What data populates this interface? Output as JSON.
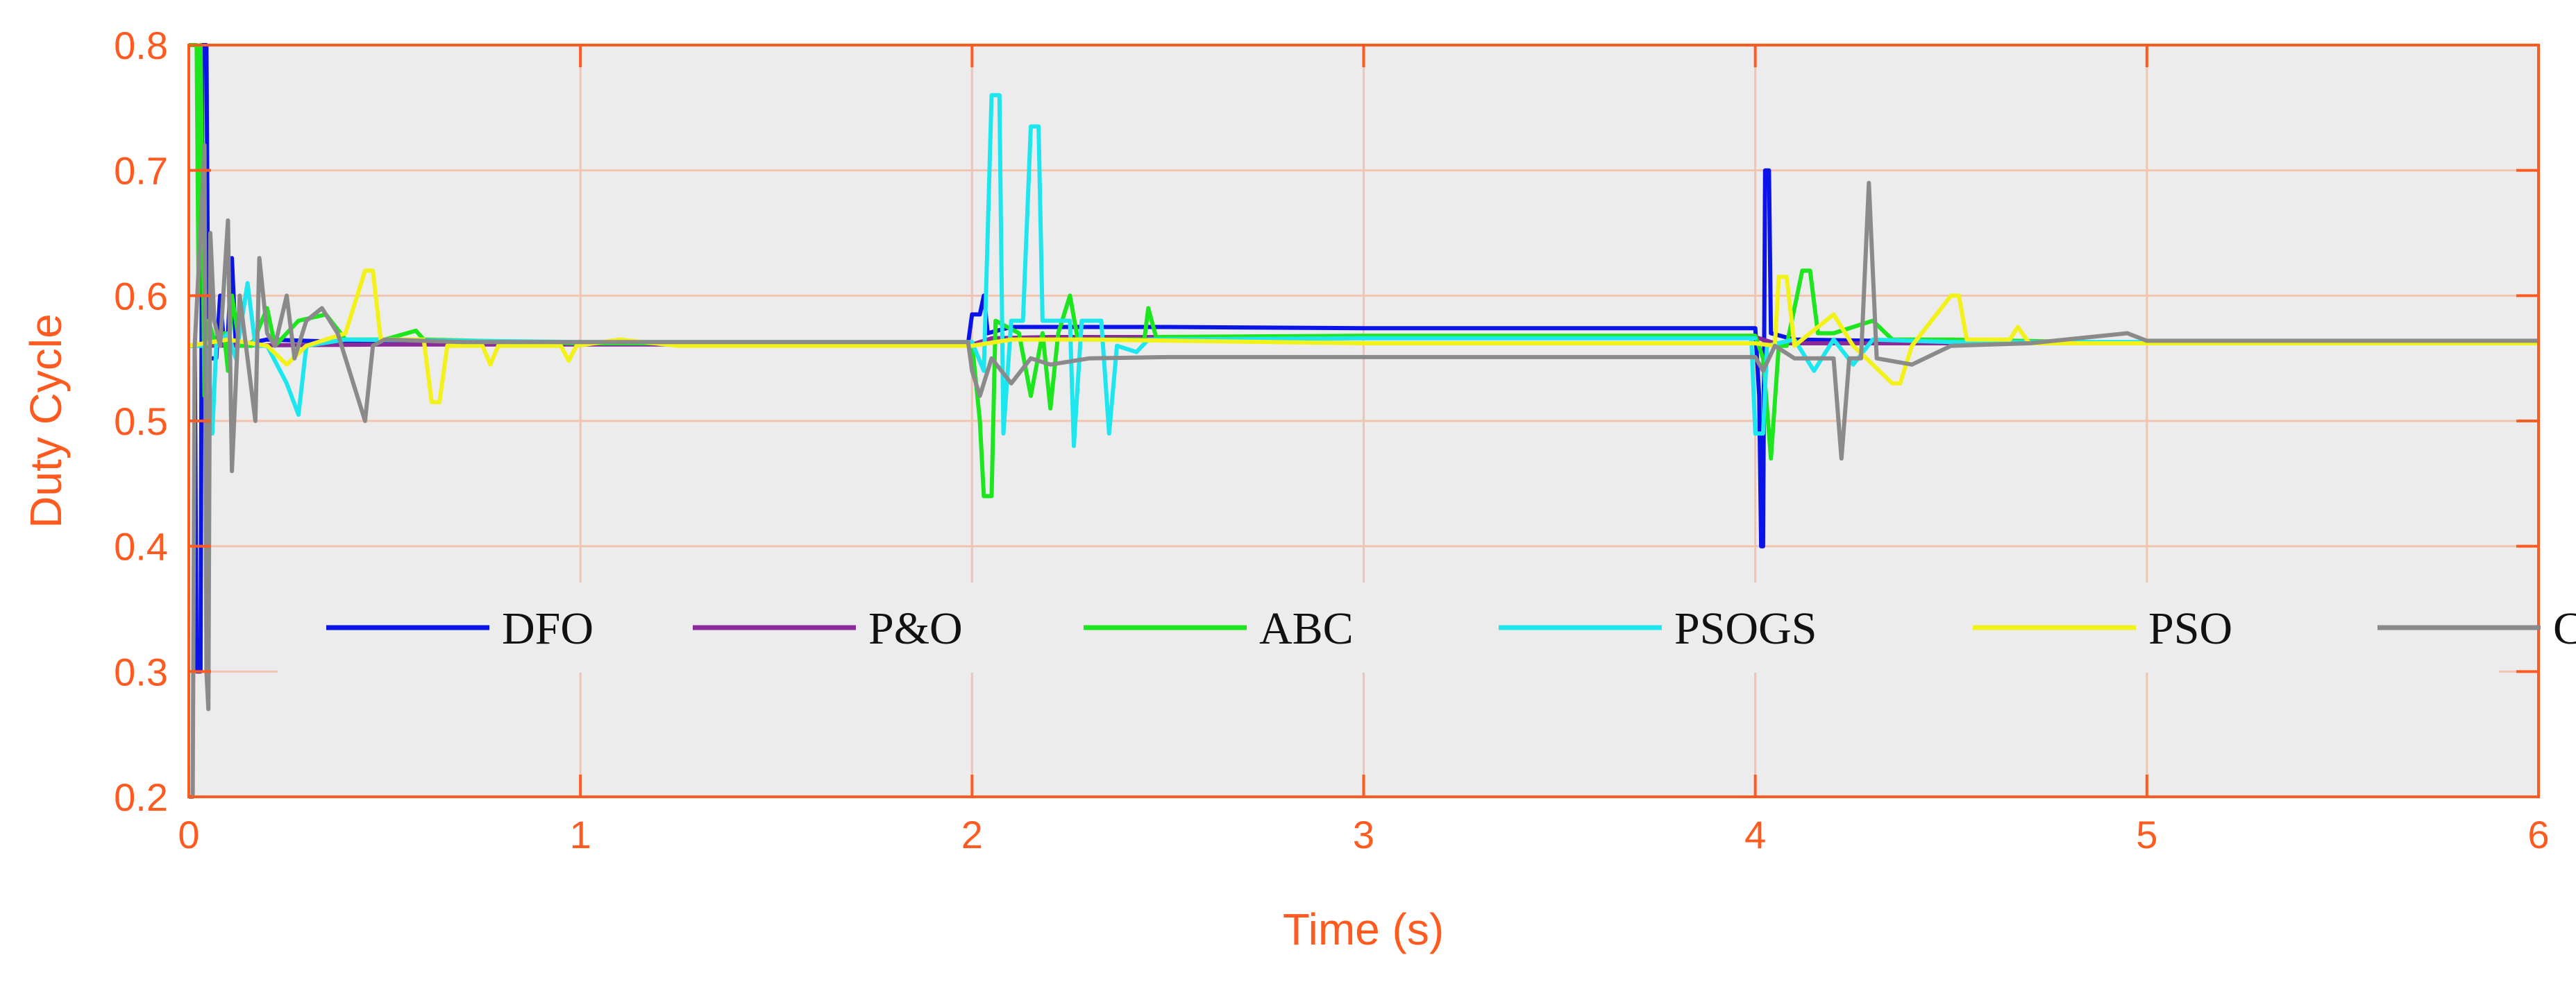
{
  "chart_data": {
    "type": "line",
    "title": "",
    "xlabel": "Time (s)",
    "ylabel": "Duty Cycle",
    "xlim": [
      0,
      6
    ],
    "ylim": [
      0.2,
      0.8
    ],
    "xticks": [
      0,
      1,
      2,
      3,
      4,
      5,
      6
    ],
    "yticks": [
      0.2,
      0.3,
      0.4,
      0.5,
      0.6,
      0.7,
      0.8
    ],
    "xtick_labels": [
      "0",
      "1",
      "2",
      "3",
      "4",
      "5",
      "6"
    ],
    "ytick_labels": [
      "0.2",
      "0.3",
      "0.4",
      "0.5",
      "0.6",
      "0.7",
      "0.8"
    ],
    "grid": true,
    "legend_position": "lower-center",
    "colors": {
      "axis": "#ff5a1f",
      "plot_background": "#ececec",
      "grid": "#f2c4b0"
    },
    "series": [
      {
        "name": "DFO",
        "color": "#0a14e6",
        "points": [
          [
            0,
            0.56
          ],
          [
            0.015,
            0.56
          ],
          [
            0.02,
            0.3
          ],
          [
            0.03,
            0.3
          ],
          [
            0.035,
            0.8
          ],
          [
            0.045,
            0.8
          ],
          [
            0.05,
            0.55
          ],
          [
            0.07,
            0.55
          ],
          [
            0.08,
            0.6
          ],
          [
            0.09,
            0.56
          ],
          [
            0.1,
            0.57
          ],
          [
            0.11,
            0.63
          ],
          [
            0.12,
            0.56
          ],
          [
            0.2,
            0.565
          ],
          [
            0.4,
            0.563
          ],
          [
            0.6,
            0.562
          ],
          [
            1.0,
            0.562
          ],
          [
            1.5,
            0.562
          ],
          [
            1.99,
            0.562
          ],
          [
            2.0,
            0.585
          ],
          [
            2.02,
            0.585
          ],
          [
            2.03,
            0.6
          ],
          [
            2.04,
            0.57
          ],
          [
            2.1,
            0.575
          ],
          [
            2.5,
            0.575
          ],
          [
            3.0,
            0.574
          ],
          [
            3.5,
            0.574
          ],
          [
            4.0,
            0.574
          ],
          [
            4.01,
            0.52
          ],
          [
            4.015,
            0.4
          ],
          [
            4.02,
            0.4
          ],
          [
            4.025,
            0.7
          ],
          [
            4.035,
            0.7
          ],
          [
            4.04,
            0.57
          ],
          [
            4.1,
            0.565
          ],
          [
            4.5,
            0.563
          ],
          [
            5.0,
            0.562
          ],
          [
            6.0,
            0.562
          ]
        ]
      },
      {
        "name": "P&O",
        "color": "#8a2a9a",
        "points": [
          [
            0,
            0.56
          ],
          [
            0.5,
            0.561
          ],
          [
            1.0,
            0.561
          ],
          [
            2.0,
            0.561
          ],
          [
            2.05,
            0.566
          ],
          [
            2.2,
            0.567
          ],
          [
            3.0,
            0.567
          ],
          [
            4.0,
            0.567
          ],
          [
            4.05,
            0.562
          ],
          [
            4.5,
            0.562
          ],
          [
            5.0,
            0.562
          ],
          [
            6.0,
            0.562
          ]
        ]
      },
      {
        "name": "ABC",
        "color": "#1ee61e",
        "points": [
          [
            0,
            0.8
          ],
          [
            0.02,
            0.8
          ],
          [
            0.025,
            0.6
          ],
          [
            0.03,
            0.8
          ],
          [
            0.04,
            0.52
          ],
          [
            0.05,
            0.58
          ],
          [
            0.07,
            0.56
          ],
          [
            0.09,
            0.57
          ],
          [
            0.1,
            0.54
          ],
          [
            0.11,
            0.6
          ],
          [
            0.13,
            0.56
          ],
          [
            0.16,
            0.56
          ],
          [
            0.2,
            0.59
          ],
          [
            0.22,
            0.56
          ],
          [
            0.28,
            0.58
          ],
          [
            0.35,
            0.585
          ],
          [
            0.4,
            0.565
          ],
          [
            0.5,
            0.565
          ],
          [
            0.58,
            0.572
          ],
          [
            0.6,
            0.565
          ],
          [
            1.0,
            0.562
          ],
          [
            1.5,
            0.562
          ],
          [
            2.0,
            0.562
          ],
          [
            2.02,
            0.5
          ],
          [
            2.03,
            0.44
          ],
          [
            2.05,
            0.44
          ],
          [
            2.06,
            0.58
          ],
          [
            2.12,
            0.57
          ],
          [
            2.15,
            0.52
          ],
          [
            2.18,
            0.57
          ],
          [
            2.2,
            0.51
          ],
          [
            2.22,
            0.57
          ],
          [
            2.25,
            0.6
          ],
          [
            2.27,
            0.565
          ],
          [
            2.44,
            0.565
          ],
          [
            2.45,
            0.59
          ],
          [
            2.47,
            0.567
          ],
          [
            3.0,
            0.568
          ],
          [
            4.0,
            0.568
          ],
          [
            4.02,
            0.55
          ],
          [
            4.04,
            0.47
          ],
          [
            4.06,
            0.56
          ],
          [
            4.08,
            0.56
          ],
          [
            4.1,
            0.59
          ],
          [
            4.12,
            0.62
          ],
          [
            4.14,
            0.62
          ],
          [
            4.16,
            0.57
          ],
          [
            4.2,
            0.57
          ],
          [
            4.3,
            0.58
          ],
          [
            4.35,
            0.565
          ],
          [
            4.5,
            0.565
          ],
          [
            5.0,
            0.562
          ],
          [
            6.0,
            0.562
          ]
        ]
      },
      {
        "name": "PSOGS",
        "color": "#1ee6ee",
        "points": [
          [
            0,
            0.56
          ],
          [
            0.04,
            0.56
          ],
          [
            0.05,
            0.55
          ],
          [
            0.06,
            0.49
          ],
          [
            0.07,
            0.56
          ],
          [
            0.1,
            0.57
          ],
          [
            0.12,
            0.55
          ],
          [
            0.15,
            0.61
          ],
          [
            0.17,
            0.56
          ],
          [
            0.2,
            0.56
          ],
          [
            0.25,
            0.53
          ],
          [
            0.28,
            0.505
          ],
          [
            0.3,
            0.56
          ],
          [
            0.4,
            0.565
          ],
          [
            1.0,
            0.563
          ],
          [
            2.0,
            0.563
          ],
          [
            2.03,
            0.54
          ],
          [
            2.05,
            0.76
          ],
          [
            2.07,
            0.76
          ],
          [
            2.08,
            0.49
          ],
          [
            2.1,
            0.58
          ],
          [
            2.13,
            0.58
          ],
          [
            2.15,
            0.735
          ],
          [
            2.17,
            0.735
          ],
          [
            2.18,
            0.58
          ],
          [
            2.25,
            0.58
          ],
          [
            2.26,
            0.48
          ],
          [
            2.28,
            0.58
          ],
          [
            2.33,
            0.58
          ],
          [
            2.35,
            0.49
          ],
          [
            2.37,
            0.56
          ],
          [
            2.42,
            0.555
          ],
          [
            2.45,
            0.565
          ],
          [
            3.0,
            0.566
          ],
          [
            4.0,
            0.566
          ],
          [
            3.99,
            0.566
          ],
          [
            4.0,
            0.49
          ],
          [
            4.02,
            0.49
          ],
          [
            4.03,
            0.56
          ],
          [
            4.1,
            0.565
          ],
          [
            4.15,
            0.54
          ],
          [
            4.2,
            0.565
          ],
          [
            4.25,
            0.545
          ],
          [
            4.3,
            0.565
          ],
          [
            4.5,
            0.563
          ],
          [
            5.0,
            0.563
          ],
          [
            6.0,
            0.563
          ]
        ]
      },
      {
        "name": "PSO",
        "color": "#f2f21a",
        "points": [
          [
            0,
            0.56
          ],
          [
            0.1,
            0.565
          ],
          [
            0.2,
            0.56
          ],
          [
            0.25,
            0.545
          ],
          [
            0.3,
            0.56
          ],
          [
            0.4,
            0.57
          ],
          [
            0.45,
            0.62
          ],
          [
            0.47,
            0.62
          ],
          [
            0.49,
            0.565
          ],
          [
            0.6,
            0.565
          ],
          [
            0.62,
            0.515
          ],
          [
            0.64,
            0.515
          ],
          [
            0.66,
            0.56
          ],
          [
            0.75,
            0.56
          ],
          [
            0.77,
            0.545
          ],
          [
            0.79,
            0.56
          ],
          [
            0.95,
            0.56
          ],
          [
            0.97,
            0.548
          ],
          [
            0.99,
            0.56
          ],
          [
            1.1,
            0.565
          ],
          [
            1.25,
            0.56
          ],
          [
            2.0,
            0.56
          ],
          [
            2.1,
            0.565
          ],
          [
            2.3,
            0.565
          ],
          [
            3.0,
            0.562
          ],
          [
            4.0,
            0.562
          ],
          [
            4.05,
            0.56
          ],
          [
            4.06,
            0.615
          ],
          [
            4.08,
            0.615
          ],
          [
            4.1,
            0.56
          ],
          [
            4.2,
            0.585
          ],
          [
            4.25,
            0.56
          ],
          [
            4.35,
            0.53
          ],
          [
            4.37,
            0.53
          ],
          [
            4.4,
            0.56
          ],
          [
            4.5,
            0.6
          ],
          [
            4.52,
            0.6
          ],
          [
            4.54,
            0.565
          ],
          [
            4.65,
            0.565
          ],
          [
            4.67,
            0.575
          ],
          [
            4.7,
            0.562
          ],
          [
            5.0,
            0.562
          ],
          [
            6.0,
            0.562
          ]
        ]
      },
      {
        "name": "CS",
        "color": "#8a8a8a",
        "points": [
          [
            0,
            0.2
          ],
          [
            0.01,
            0.2
          ],
          [
            0.015,
            0.56
          ],
          [
            0.03,
            0.65
          ],
          [
            0.04,
            0.72
          ],
          [
            0.045,
            0.3
          ],
          [
            0.05,
            0.27
          ],
          [
            0.055,
            0.65
          ],
          [
            0.065,
            0.58
          ],
          [
            0.08,
            0.56
          ],
          [
            0.1,
            0.66
          ],
          [
            0.11,
            0.46
          ],
          [
            0.13,
            0.6
          ],
          [
            0.15,
            0.55
          ],
          [
            0.17,
            0.5
          ],
          [
            0.18,
            0.63
          ],
          [
            0.2,
            0.57
          ],
          [
            0.22,
            0.56
          ],
          [
            0.25,
            0.6
          ],
          [
            0.27,
            0.55
          ],
          [
            0.3,
            0.58
          ],
          [
            0.34,
            0.59
          ],
          [
            0.38,
            0.57
          ],
          [
            0.45,
            0.5
          ],
          [
            0.47,
            0.56
          ],
          [
            0.5,
            0.565
          ],
          [
            0.7,
            0.563
          ],
          [
            1.0,
            0.563
          ],
          [
            1.99,
            0.563
          ],
          [
            2.0,
            0.54
          ],
          [
            2.02,
            0.52
          ],
          [
            2.05,
            0.55
          ],
          [
            2.1,
            0.53
          ],
          [
            2.15,
            0.55
          ],
          [
            2.2,
            0.545
          ],
          [
            2.3,
            0.55
          ],
          [
            2.5,
            0.551
          ],
          [
            3.0,
            0.551
          ],
          [
            3.5,
            0.551
          ],
          [
            4.0,
            0.551
          ],
          [
            4.02,
            0.54
          ],
          [
            4.05,
            0.56
          ],
          [
            4.1,
            0.55
          ],
          [
            4.2,
            0.55
          ],
          [
            4.22,
            0.47
          ],
          [
            4.24,
            0.55
          ],
          [
            4.27,
            0.55
          ],
          [
            4.29,
            0.69
          ],
          [
            4.31,
            0.55
          ],
          [
            4.4,
            0.545
          ],
          [
            4.5,
            0.56
          ],
          [
            4.7,
            0.562
          ],
          [
            4.95,
            0.57
          ],
          [
            5.0,
            0.564
          ],
          [
            6.0,
            0.564
          ]
        ]
      }
    ]
  }
}
